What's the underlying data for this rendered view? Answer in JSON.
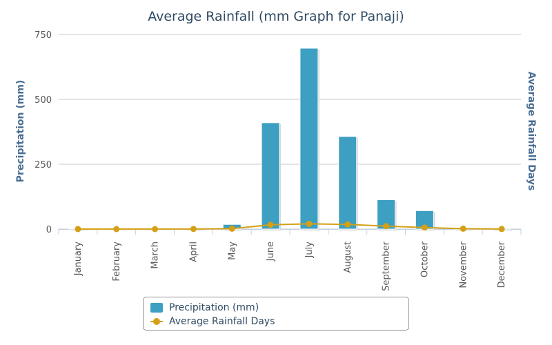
{
  "chart_data": {
    "type": "bar",
    "title": "Average Rainfall (mm Graph for Panaji)",
    "categories": [
      "January",
      "February",
      "March",
      "April",
      "May",
      "June",
      "July",
      "August",
      "September",
      "October",
      "November",
      "December"
    ],
    "series": [
      {
        "name": "Precipitation (mm)",
        "type": "bar",
        "axis": "left",
        "color": "#3d9fc1",
        "values": [
          2,
          0,
          0,
          4,
          18,
          410,
          697,
          357,
          113,
          71,
          4,
          3
        ]
      },
      {
        "name": "Average Rainfall Days",
        "type": "line",
        "axis": "right",
        "color": "#d4a017",
        "values": [
          0.2,
          0,
          0,
          0.5,
          2,
          22,
          27,
          24,
          15,
          8,
          2,
          0.4
        ]
      }
    ],
    "ylabel": "Precipitation (mm)",
    "y2label": "Average Rainfall Days",
    "ylim": [
      0,
      750
    ],
    "yticks": [
      0,
      250,
      500,
      750
    ],
    "y2lim": [
      0,
      1000
    ],
    "grid": true,
    "legend": "bottom-center"
  }
}
